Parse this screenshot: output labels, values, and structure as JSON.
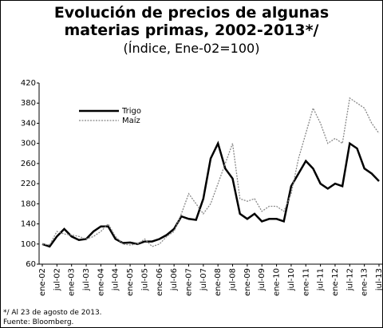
{
  "chart_data": {
    "type": "line",
    "title": "Evolución de precios de algunas materias primas, 2002-2013*/",
    "subtitle": "(Índice, Ene-02=100)",
    "categories": [
      "ene-02",
      null,
      "jul-02",
      null,
      "ene-03",
      null,
      "jul-03",
      null,
      "ene-04",
      null,
      "jul-04",
      null,
      "ene-05",
      null,
      "jul-05",
      null,
      "ene-06",
      null,
      "jul-06",
      null,
      "ene-07",
      null,
      "jul-07",
      null,
      "ene-08",
      null,
      "jul-08",
      null,
      "ene-09",
      null,
      "jul-09",
      null,
      "ene-10",
      null,
      "jul-10",
      null,
      "ene-11",
      null,
      "jul-11",
      null,
      "ene-12",
      null,
      "jul-12",
      null,
      "ene-13",
      null,
      "jul-13"
    ],
    "series": [
      {
        "name": "Trigo",
        "color": "#000000",
        "style": "solid",
        "values": [
          100,
          95,
          115,
          130,
          115,
          108,
          110,
          125,
          135,
          135,
          110,
          102,
          103,
          100,
          105,
          105,
          110,
          118,
          130,
          155,
          150,
          148,
          190,
          270,
          300,
          250,
          230,
          160,
          150,
          160,
          145,
          150,
          150,
          145,
          215,
          240,
          265,
          250,
          220,
          210,
          220,
          215,
          300,
          290,
          250,
          240,
          225
        ]
      },
      {
        "name": "Maíz",
        "color": "#888888",
        "style": "dotted",
        "values": [
          100,
          98,
          125,
          120,
          118,
          115,
          110,
          115,
          125,
          140,
          115,
          100,
          98,
          100,
          110,
          95,
          100,
          115,
          125,
          160,
          200,
          180,
          160,
          180,
          220,
          260,
          300,
          190,
          185,
          190,
          165,
          175,
          175,
          165,
          200,
          270,
          320,
          370,
          340,
          300,
          310,
          300,
          390,
          380,
          370,
          340,
          320
        ]
      }
    ],
    "ylim": [
      60,
      420
    ],
    "yticks": [
      60,
      100,
      140,
      180,
      220,
      260,
      300,
      340,
      380,
      420
    ],
    "grid": false,
    "legend": "upper-left"
  },
  "footnotes": [
    "*/ Al 23 de agosto de 2013.",
    "Fuente: Bloomberg."
  ]
}
